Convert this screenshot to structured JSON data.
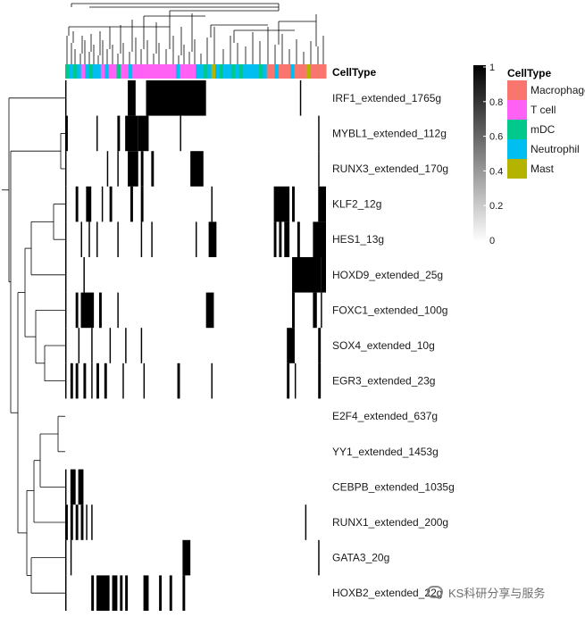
{
  "chart_data": {
    "type": "heatmap",
    "title": "",
    "value_range": [
      0,
      1
    ],
    "colorbar": {
      "ticks": [
        "1",
        "0.8",
        "0.6",
        "0.4",
        "0.2",
        "0"
      ],
      "low_color": "#ffffff",
      "high_color": "#000000"
    },
    "annotation": {
      "title": "CellType",
      "legend_title": "CellType",
      "categories": [
        {
          "name": "Macrophage",
          "color": "#F8766D"
        },
        {
          "name": "T cell",
          "color": "#FF61F4"
        },
        {
          "name": "mDC",
          "color": "#00C98B"
        },
        {
          "name": "Neutrophil",
          "color": "#00BFF0"
        },
        {
          "name": "Mast",
          "color": "#B4B400"
        }
      ]
    },
    "rows": [
      {
        "name": "IRF1_extended_1765g",
        "blocks": [
          [
            0.0,
            0.005
          ],
          [
            0.24,
            0.27
          ],
          [
            0.31,
            0.54
          ],
          [
            0.9,
            0.905
          ]
        ]
      },
      {
        "name": "MYBL1_extended_112g",
        "blocks": [
          [
            0.0,
            0.01
          ],
          [
            0.12,
            0.125
          ],
          [
            0.2,
            0.21
          ],
          [
            0.23,
            0.28
          ],
          [
            0.28,
            0.32
          ],
          [
            0.44,
            0.445
          ],
          [
            0.97,
            0.975
          ]
        ]
      },
      {
        "name": "RUNX3_extended_170g",
        "blocks": [
          [
            0.0,
            0.005
          ],
          [
            0.16,
            0.165
          ],
          [
            0.2,
            0.205
          ],
          [
            0.24,
            0.28
          ],
          [
            0.29,
            0.3
          ],
          [
            0.33,
            0.34
          ],
          [
            0.48,
            0.53
          ],
          [
            0.97,
            0.975
          ]
        ]
      },
      {
        "name": "KLF2_12g",
        "blocks": [
          [
            0.0,
            0.005
          ],
          [
            0.04,
            0.05
          ],
          [
            0.08,
            0.1
          ],
          [
            0.14,
            0.145
          ],
          [
            0.17,
            0.18
          ],
          [
            0.25,
            0.26
          ],
          [
            0.29,
            0.3
          ],
          [
            0.56,
            0.565
          ],
          [
            0.8,
            0.86
          ],
          [
            0.87,
            0.88
          ],
          [
            0.97,
            1.0
          ]
        ]
      },
      {
        "name": "HES1_13g",
        "blocks": [
          [
            0.0,
            0.005
          ],
          [
            0.06,
            0.065
          ],
          [
            0.09,
            0.095
          ],
          [
            0.12,
            0.125
          ],
          [
            0.2,
            0.205
          ],
          [
            0.29,
            0.295
          ],
          [
            0.33,
            0.335
          ],
          [
            0.5,
            0.505
          ],
          [
            0.55,
            0.58
          ],
          [
            0.8,
            0.81
          ],
          [
            0.82,
            0.83
          ],
          [
            0.84,
            0.86
          ],
          [
            0.89,
            0.9
          ],
          [
            0.95,
            1.0
          ]
        ]
      },
      {
        "name": "HOXD9_extended_25g",
        "blocks": [
          [
            0.0,
            0.005
          ],
          [
            0.07,
            0.075
          ],
          [
            0.87,
            0.98
          ],
          [
            0.98,
            1.0
          ]
        ]
      },
      {
        "name": "FOXC1_extended_100g",
        "blocks": [
          [
            0.0,
            0.005
          ],
          [
            0.04,
            0.05
          ],
          [
            0.06,
            0.11
          ],
          [
            0.13,
            0.14
          ],
          [
            0.2,
            0.205
          ],
          [
            0.54,
            0.57
          ],
          [
            0.87,
            0.88
          ],
          [
            0.95,
            0.965
          ],
          [
            0.98,
            0.985
          ]
        ]
      },
      {
        "name": "SOX4_extended_10g",
        "blocks": [
          [
            0.0,
            0.005
          ],
          [
            0.05,
            0.055
          ],
          [
            0.1,
            0.105
          ],
          [
            0.17,
            0.175
          ],
          [
            0.23,
            0.235
          ],
          [
            0.29,
            0.295
          ],
          [
            0.85,
            0.88
          ],
          [
            0.97,
            0.98
          ]
        ]
      },
      {
        "name": "EGR3_extended_23g",
        "blocks": [
          [
            0.0,
            0.005
          ],
          [
            0.02,
            0.03
          ],
          [
            0.04,
            0.05
          ],
          [
            0.07,
            0.08
          ],
          [
            0.1,
            0.105
          ],
          [
            0.12,
            0.13
          ],
          [
            0.15,
            0.16
          ],
          [
            0.22,
            0.225
          ],
          [
            0.3,
            0.305
          ],
          [
            0.43,
            0.44
          ],
          [
            0.56,
            0.565
          ],
          [
            0.85,
            0.86
          ],
          [
            0.88,
            0.885
          ],
          [
            0.97,
            0.98
          ]
        ]
      },
      {
        "name": "E2F4_extended_637g",
        "blocks": []
      },
      {
        "name": "YY1_extended_1453g",
        "blocks": []
      },
      {
        "name": "CEBPB_extended_1035g",
        "blocks": [
          [
            0.0,
            0.005
          ],
          [
            0.02,
            0.04
          ],
          [
            0.05,
            0.07
          ]
        ]
      },
      {
        "name": "RUNX1_extended_200g",
        "blocks": [
          [
            0.0,
            0.01
          ],
          [
            0.02,
            0.03
          ],
          [
            0.04,
            0.05
          ],
          [
            0.06,
            0.07
          ],
          [
            0.08,
            0.085
          ],
          [
            0.1,
            0.105
          ],
          [
            0.92,
            0.925
          ]
        ]
      },
      {
        "name": "GATA3_20g",
        "blocks": [
          [
            0.0,
            0.005
          ],
          [
            0.02,
            0.025
          ],
          [
            0.45,
            0.48
          ],
          [
            0.97,
            0.975
          ]
        ]
      },
      {
        "name": "HOXB2_extended_22g",
        "blocks": [
          [
            0.0,
            0.005
          ],
          [
            0.1,
            0.11
          ],
          [
            0.12,
            0.17
          ],
          [
            0.18,
            0.2
          ],
          [
            0.21,
            0.22
          ],
          [
            0.23,
            0.24
          ],
          [
            0.3,
            0.32
          ],
          [
            0.36,
            0.37
          ],
          [
            0.4,
            0.41
          ],
          [
            0.45,
            0.46
          ]
        ]
      }
    ]
  },
  "watermark": {
    "text": "KS科研分享与服务"
  }
}
